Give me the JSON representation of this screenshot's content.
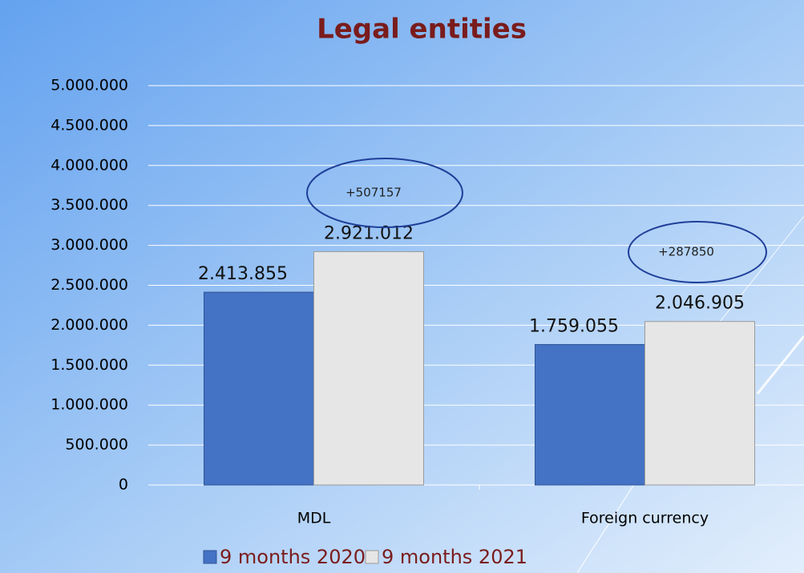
{
  "chart_data": {
    "type": "bar",
    "title": "Legal entities",
    "categories": [
      "MDL",
      "Foreign currency"
    ],
    "series": [
      {
        "name": "9 months 2020",
        "color": "#4472c4",
        "values": [
          2413855,
          1759055
        ],
        "value_labels": [
          "2.413.855",
          "1.759.055"
        ]
      },
      {
        "name": "9 months 2021",
        "color": "#e6e6e6",
        "values": [
          2921012,
          2046905
        ],
        "value_labels": [
          "2.921.012",
          "2.046.905"
        ]
      }
    ],
    "annotations": [
      "+507157",
      "+287850"
    ],
    "ylim": [
      0,
      5000000
    ],
    "yticks": [
      0,
      {
        "value": 500000,
        "label": "500.000"
      },
      {
        "value": 1000000,
        "label": "1.000.000"
      },
      {
        "value": 1500000,
        "label": "1.500.000"
      },
      {
        "value": 2000000,
        "label": "2.000.000"
      },
      {
        "value": 2500000,
        "label": "2.500.000"
      },
      {
        "value": 3000000,
        "label": "3.000.000"
      },
      {
        "value": 3500000,
        "label": "3.500.000"
      },
      {
        "value": 4000000,
        "label": "4.000.000"
      },
      {
        "value": 4500000,
        "label": "4.500.000"
      },
      {
        "value": 5000000,
        "label": "5.000.000"
      }
    ],
    "grid": true,
    "legend": "bottom"
  }
}
